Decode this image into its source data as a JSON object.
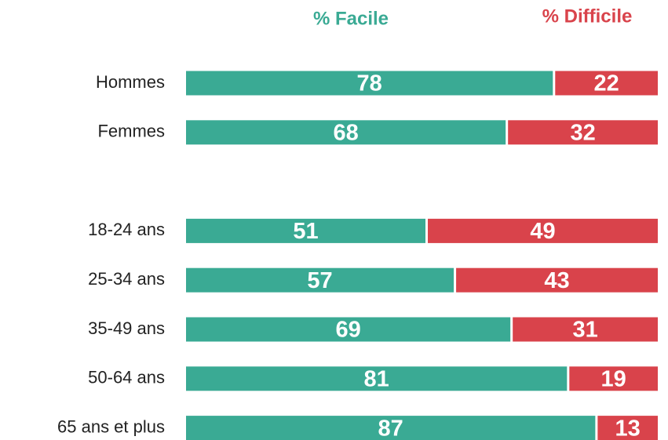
{
  "chart_data": {
    "type": "stacked-bar",
    "orientation": "horizontal",
    "categories": [
      "Hommes",
      "Femmes",
      null,
      "18-24 ans",
      "25-34 ans",
      "35-49 ans",
      "50-64 ans",
      "65 ans et plus"
    ],
    "series": [
      {
        "name": "% Facile",
        "color": "#3aaa94",
        "values": [
          78,
          68,
          null,
          51,
          57,
          69,
          81,
          87
        ]
      },
      {
        "name": "% Difficile",
        "color": "#d9434b",
        "values": [
          22,
          32,
          null,
          49,
          43,
          31,
          19,
          13
        ]
      }
    ],
    "xlim": [
      0,
      100
    ]
  }
}
